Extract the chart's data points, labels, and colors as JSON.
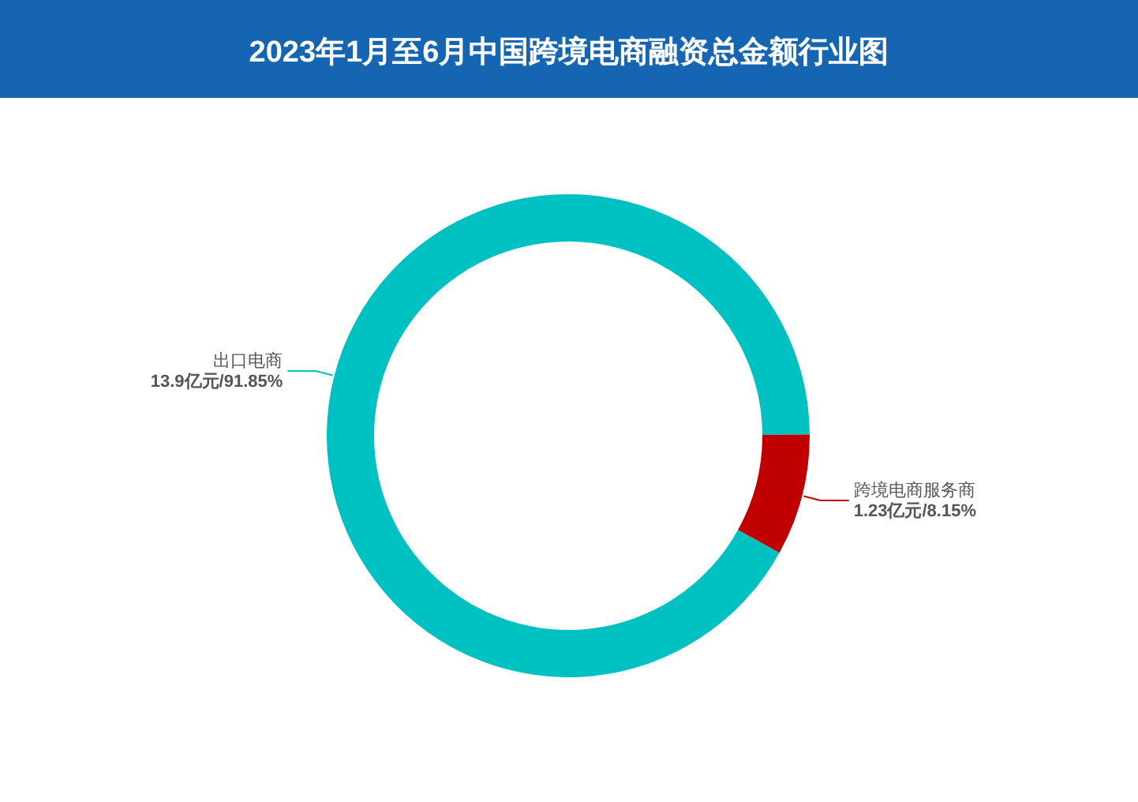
{
  "chart_data": {
    "type": "donut",
    "title": "2023年1月至6月中国跨境电商融资总金额行业图",
    "categories": [
      "出口电商",
      "跨境电商服务商"
    ],
    "values": [
      13.9,
      1.23
    ],
    "value_labels": [
      "13.9亿元/91.85%",
      "1.23亿元/8.15%"
    ],
    "colors": [
      "#00c1c1",
      "#c00000"
    ]
  }
}
